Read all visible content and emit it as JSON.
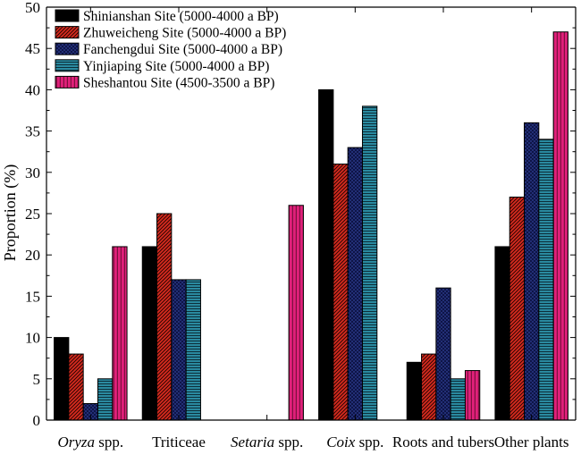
{
  "chart_data": {
    "type": "bar",
    "ylabel": "Proportion (%)",
    "xlabel": "",
    "ylim": [
      0,
      50
    ],
    "yticks": [
      0,
      5,
      10,
      15,
      20,
      25,
      30,
      35,
      40,
      45,
      50
    ],
    "grid": false,
    "legend_position": "top-left",
    "categories": [
      {
        "italic": "Oryza",
        "plain": " spp."
      },
      {
        "italic": "",
        "plain": "Triticeae"
      },
      {
        "italic": "Setaria",
        "plain": " spp."
      },
      {
        "italic": "Coix",
        "plain": " spp."
      },
      {
        "italic": "",
        "plain": "Roots and tubers"
      },
      {
        "italic": "",
        "plain": "Other plants"
      }
    ],
    "series": [
      {
        "name": "Shinianshan Site (5000-4000 a BP)",
        "color": "#000000",
        "pattern": "solid-black",
        "values": [
          10,
          21,
          0,
          40,
          7,
          21
        ]
      },
      {
        "name": "Zhuweicheng Site (5000-4000 a BP)",
        "color": "#d42a1e",
        "pattern": "diagonal-red",
        "values": [
          8,
          25,
          0,
          31,
          8,
          27
        ]
      },
      {
        "name": "Fanchengdui Site (5000-4000 a BP)",
        "color": "#0c1452",
        "pattern": "crosshatch-navy",
        "values": [
          2,
          17,
          0,
          33,
          16,
          36
        ]
      },
      {
        "name": "Yinjiaping Site (5000-4000 a BP)",
        "color": "#1e6e82",
        "pattern": "horizontal-teal",
        "values": [
          5,
          17,
          0,
          38,
          5,
          34
        ]
      },
      {
        "name": "Sheshantou Site (4500-3500 a BP)",
        "color": "#d8136f",
        "pattern": "vertical-magenta",
        "values": [
          21,
          0,
          26,
          0,
          6,
          47
        ]
      }
    ]
  }
}
